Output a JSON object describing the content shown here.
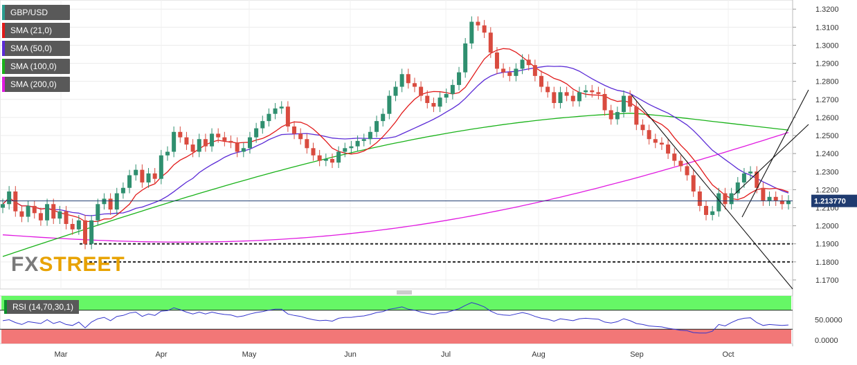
{
  "legend": [
    {
      "label": "GBP/USD",
      "color": "#2a9d8f"
    },
    {
      "label": "SMA (21,0)",
      "color": "#e11919"
    },
    {
      "label": "SMA (50,0)",
      "color": "#5b2bd6"
    },
    {
      "label": "SMA (100,0)",
      "color": "#19b219"
    },
    {
      "label": "SMA (200,0)",
      "color": "#e019e0"
    }
  ],
  "watermark": {
    "part1": "FX",
    "part2": "STREET"
  },
  "current_price_label": "1.213770",
  "rsi": {
    "label": "RSI (14,70,30,1)",
    "ticks": [
      "50.0000",
      "0.0000"
    ]
  },
  "colors": {
    "up": "#2f8f6f",
    "down": "#d94b3f",
    "sma21": "#e11919",
    "sma50": "#5b2bd6",
    "sma100": "#19b219",
    "sma200": "#e019e0",
    "rsi_line": "#3333cc",
    "rsi_over": "#66f766",
    "rsi_under": "#f27777"
  },
  "chart_data": {
    "type": "line",
    "xlabels": [
      "Mar",
      "Apr",
      "May",
      "Jun",
      "Jul",
      "Aug",
      "Sep",
      "Oct"
    ],
    "yticks": [
      "1.3200",
      "1.3100",
      "1.3000",
      "1.2900",
      "1.2800",
      "1.2700",
      "1.2600",
      "1.2500",
      "1.2400",
      "1.2300",
      "1.2200",
      "1.2100",
      "1.2000",
      "1.1900",
      "1.1800",
      "1.1700"
    ],
    "ylim": [
      1.165,
      1.322
    ],
    "series": [
      {
        "name": "GBP/USD",
        "values": [
          1.212,
          1.219,
          1.208,
          1.205,
          1.211,
          1.207,
          1.203,
          1.212,
          1.204,
          1.208,
          1.201,
          1.198,
          1.203,
          1.19,
          1.203,
          1.212,
          1.215,
          1.209,
          1.218,
          1.221,
          1.228,
          1.231,
          1.224,
          1.229,
          1.226,
          1.239,
          1.241,
          1.252,
          1.249,
          1.245,
          1.241,
          1.248,
          1.244,
          1.251,
          1.249,
          1.247,
          1.246,
          1.241,
          1.243,
          1.249,
          1.254,
          1.258,
          1.262,
          1.265,
          1.266,
          1.255,
          1.251,
          1.248,
          1.243,
          1.239,
          1.236,
          1.237,
          1.235,
          1.241,
          1.243,
          1.244,
          1.247,
          1.248,
          1.252,
          1.258,
          1.262,
          1.272,
          1.277,
          1.284,
          1.279,
          1.277,
          1.272,
          1.268,
          1.266,
          1.271,
          1.273,
          1.278,
          1.285,
          1.301,
          1.313,
          1.311,
          1.307,
          1.296,
          1.287,
          1.285,
          1.283,
          1.287,
          1.292,
          1.289,
          1.283,
          1.277,
          1.274,
          1.268,
          1.274,
          1.272,
          1.269,
          1.274,
          1.275,
          1.274,
          1.273,
          1.264,
          1.259,
          1.263,
          1.272,
          1.266,
          1.256,
          1.253,
          1.248,
          1.246,
          1.245,
          1.24,
          1.236,
          1.233,
          1.228,
          1.219,
          1.211,
          1.206,
          1.208,
          1.218,
          1.212,
          1.218,
          1.224,
          1.229,
          1.23,
          1.221,
          1.214,
          1.216,
          1.214,
          1.212,
          1.214
        ]
      },
      {
        "name": "SMA (21,0)"
      },
      {
        "name": "SMA (50,0)"
      },
      {
        "name": "SMA (100,0)"
      },
      {
        "name": "SMA (200,0)"
      }
    ],
    "rsi_values": [
      48,
      50,
      44,
      40,
      46,
      44,
      42,
      50,
      42,
      46,
      40,
      38,
      45,
      33,
      45,
      52,
      55,
      48,
      57,
      59,
      64,
      66,
      57,
      62,
      59,
      68,
      69,
      75,
      71,
      66,
      62,
      66,
      62,
      66,
      63,
      61,
      60,
      56,
      58,
      62,
      65,
      67,
      70,
      72,
      72,
      62,
      59,
      57,
      53,
      50,
      48,
      49,
      47,
      53,
      55,
      55,
      57,
      58,
      61,
      65,
      67,
      72,
      74,
      77,
      72,
      70,
      66,
      63,
      61,
      64,
      65,
      69,
      73,
      80,
      86,
      82,
      77,
      68,
      62,
      60,
      59,
      62,
      65,
      62,
      57,
      53,
      51,
      47,
      52,
      50,
      48,
      52,
      53,
      52,
      51,
      45,
      43,
      46,
      52,
      48,
      42,
      40,
      37,
      36,
      35,
      32,
      30,
      28,
      27,
      23,
      22,
      22,
      26,
      40,
      37,
      44,
      50,
      53,
      54,
      44,
      38,
      40,
      39,
      38,
      39
    ],
    "hlines": [
      1.19,
      1.18
    ],
    "grid": true
  }
}
